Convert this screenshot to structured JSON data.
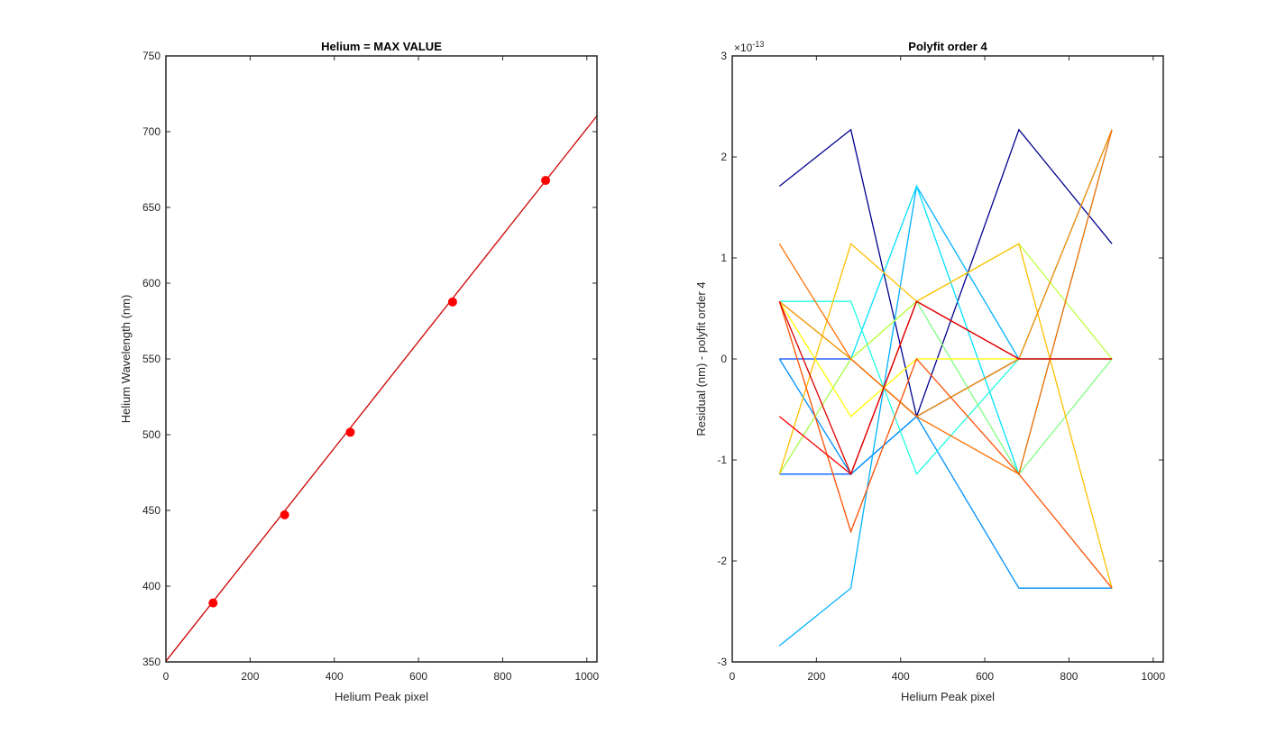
{
  "chart_data": [
    {
      "type": "line",
      "title": "Helium = MAX VALUE",
      "xlabel": "Helium Peak pixel",
      "ylabel": "Helium Wavelength (nm)",
      "xlim": [
        0,
        1024
      ],
      "ylim": [
        350,
        750
      ],
      "xticks": [
        0,
        200,
        400,
        600,
        800,
        1000
      ],
      "yticks": [
        350,
        400,
        450,
        500,
        550,
        600,
        650,
        700,
        750
      ],
      "xtick_labels": [
        "0",
        "200",
        "400",
        "600",
        "800",
        "1000"
      ],
      "ytick_labels": [
        "350",
        "400",
        "450",
        "500",
        "550",
        "600",
        "650",
        "700",
        "750"
      ],
      "grid": false,
      "points": {
        "x": [
          112,
          282,
          438,
          681,
          902
        ],
        "y": [
          388.9,
          447.1,
          501.6,
          587.6,
          667.8
        ],
        "color": "#ff0000"
      },
      "fit_line": {
        "x": [
          0,
          1024
        ],
        "y": [
          350.5,
          710.5
        ],
        "color": "#cc0000"
      }
    },
    {
      "type": "line",
      "title": "Polyfit order 4",
      "xlabel": "Helium Peak pixel",
      "ylabel": "Residual (nm) - polyfit order 4",
      "exponent_label": "-13",
      "exponent_base": "×10",
      "xlim": [
        0,
        1024
      ],
      "ylim": [
        -3,
        3
      ],
      "xticks": [
        0,
        200,
        400,
        600,
        800,
        1000
      ],
      "yticks": [
        -3,
        -2,
        -1,
        0,
        1,
        2,
        3
      ],
      "xtick_labels": [
        "0",
        "200",
        "400",
        "600",
        "800",
        "1000"
      ],
      "ytick_labels": [
        "-3",
        "-2",
        "-1",
        "0",
        "1",
        "2",
        "3"
      ],
      "grid": false,
      "x": [
        112,
        282,
        438,
        681,
        902
      ],
      "series": [
        {
          "color": "#00008f",
          "values": [
            1.71,
            2.27,
            -0.57,
            2.27,
            1.14
          ]
        },
        {
          "color": "#0040ff",
          "values": [
            0,
            0,
            -0.57,
            0,
            0
          ]
        },
        {
          "color": "#0060ff",
          "values": [
            -1.14,
            -1.14,
            -0.57,
            0,
            0
          ]
        },
        {
          "color": "#0090ff",
          "values": [
            0,
            -1.14,
            -0.57,
            -2.27,
            -2.27
          ]
        },
        {
          "color": "#00b0ff",
          "values": [
            -2.84,
            -2.27,
            1.71,
            0,
            2.27
          ]
        },
        {
          "color": "#00e0ff",
          "values": [
            -1.14,
            0,
            1.71,
            -1.14,
            2.27
          ]
        },
        {
          "color": "#20ffe0",
          "values": [
            0.57,
            0.57,
            -1.14,
            0,
            0
          ]
        },
        {
          "color": "#80ff80",
          "values": [
            0.57,
            0,
            0.57,
            -1.14,
            0
          ]
        },
        {
          "color": "#c0ff40",
          "values": [
            -1.14,
            0,
            0.57,
            1.14,
            0
          ]
        },
        {
          "color": "#ffff00",
          "values": [
            0.57,
            -0.57,
            0,
            0,
            0
          ]
        },
        {
          "color": "#ffc000",
          "values": [
            -1.14,
            1.14,
            0.57,
            1.14,
            -2.27
          ]
        },
        {
          "color": "#ff9000",
          "values": [
            0.57,
            0,
            -0.57,
            0,
            2.27
          ]
        },
        {
          "color": "#ff7000",
          "values": [
            1.14,
            0,
            -0.57,
            -1.14,
            2.27
          ]
        },
        {
          "color": "#ff5000",
          "values": [
            0.57,
            -1.71,
            0,
            -1.14,
            -2.27
          ]
        },
        {
          "color": "#ff0000",
          "values": [
            -0.57,
            -1.14,
            0.57,
            0,
            0
          ]
        },
        {
          "color": "#dd0000",
          "values": [
            0.57,
            -1.14,
            0.57,
            0,
            0
          ]
        }
      ]
    }
  ]
}
